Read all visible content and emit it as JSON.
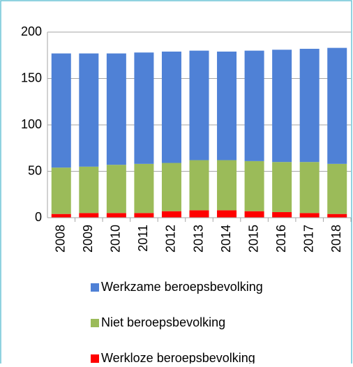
{
  "chart_data": {
    "type": "stacked-bar",
    "categories": [
      "2008",
      "2009",
      "2010",
      "2011",
      "2012",
      "2013",
      "2014",
      "2015",
      "2016",
      "2017",
      "2018"
    ],
    "series": [
      {
        "name": "Werkloze beroepsbevolking",
        "color": "#ff0000",
        "values": [
          4,
          5,
          5,
          5,
          7,
          8,
          8,
          7,
          6,
          5,
          4
        ]
      },
      {
        "name": "Niet beroepsbevolking",
        "color": "#9bbb59",
        "values": [
          50,
          50,
          52,
          53,
          52,
          54,
          54,
          54,
          54,
          55,
          54
        ]
      },
      {
        "name": "Werkzame beroepsbevolking",
        "color": "#4f81d6",
        "values": [
          123,
          122,
          120,
          120,
          120,
          118,
          117,
          119,
          121,
          122,
          125
        ]
      }
    ],
    "ylim": [
      0,
      200
    ],
    "yticks": [
      0,
      50,
      100,
      150,
      200
    ],
    "grid": true
  }
}
